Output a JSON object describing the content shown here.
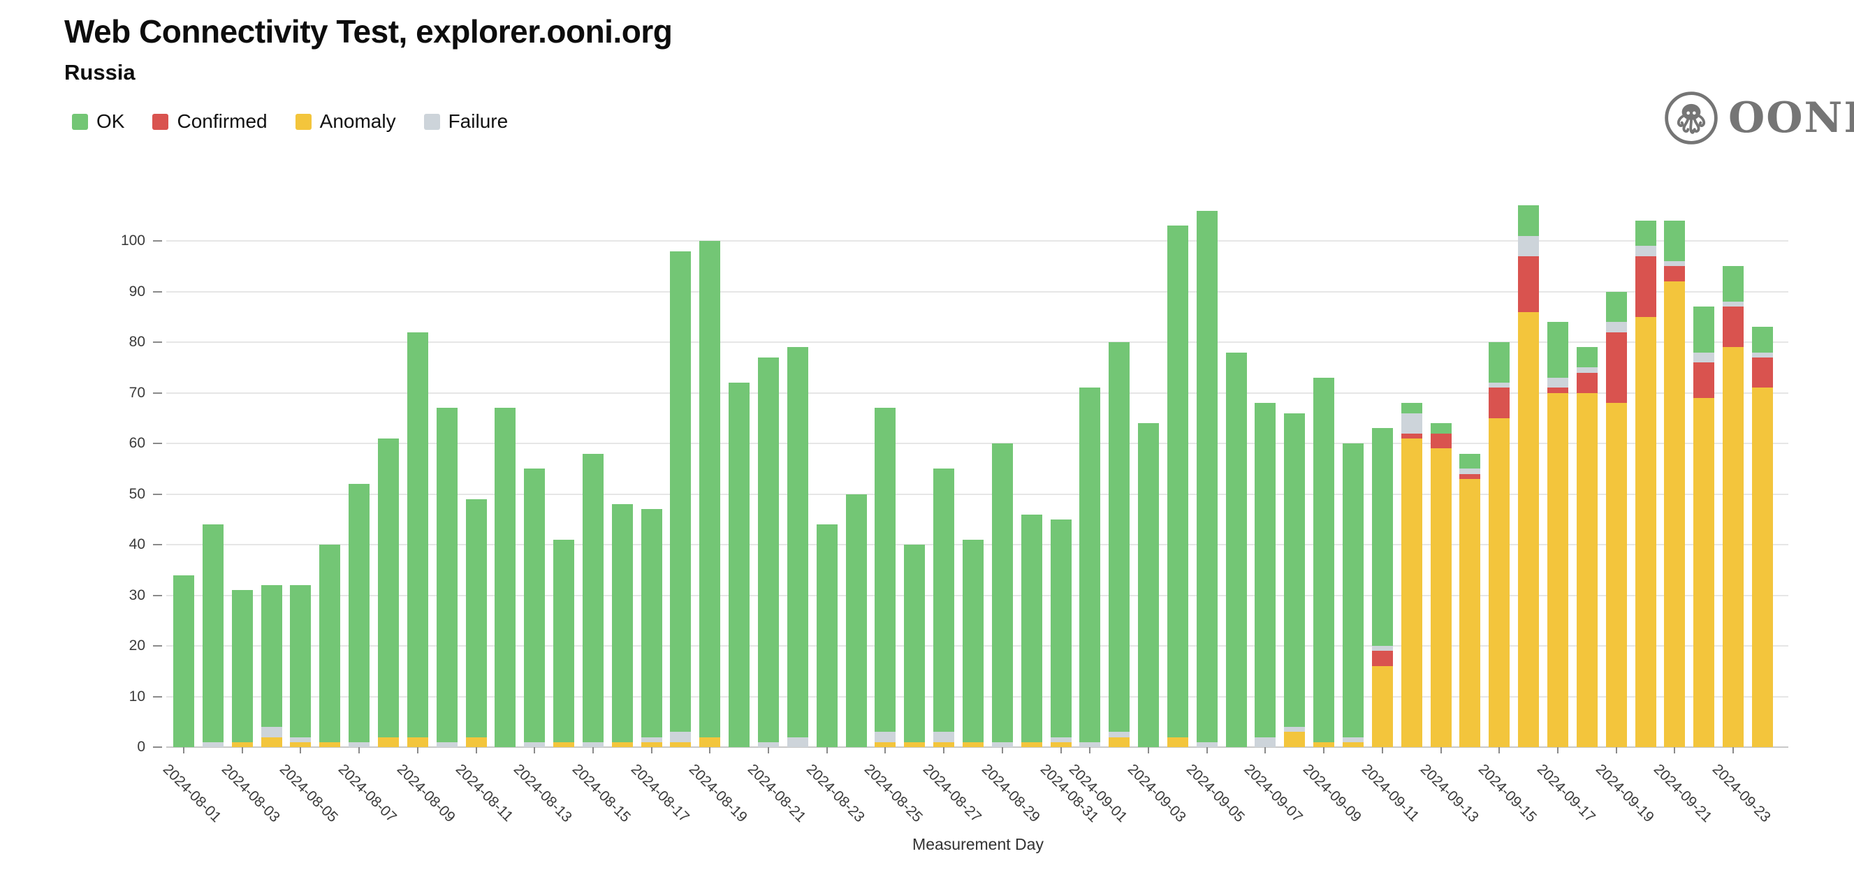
{
  "header": {
    "title": "Web Connectivity Test, explorer.ooni.org",
    "subtitle": "Russia"
  },
  "brand": {
    "name": "OONI",
    "logo_icon": "ooni-octopus-icon",
    "color": "#757575"
  },
  "legend": [
    {
      "key": "ok",
      "label": "OK",
      "color": "#73c675"
    },
    {
      "key": "confirmed",
      "label": "Confirmed",
      "color": "#d9534f"
    },
    {
      "key": "anomaly",
      "label": "Anomaly",
      "color": "#f3c53c"
    },
    {
      "key": "failure",
      "label": "Failure",
      "color": "#cdd4da"
    }
  ],
  "chart_data": {
    "type": "bar",
    "stacked": true,
    "title": "Web Connectivity Test, explorer.ooni.org",
    "subtitle": "Russia",
    "xlabel": "Measurement Day",
    "ylabel": "",
    "ylim": [
      0,
      100
    ],
    "y_ticks": [
      0,
      10,
      20,
      30,
      40,
      50,
      60,
      70,
      80,
      90,
      100
    ],
    "grid": "horizontal",
    "legend_position": "top-left",
    "stack_order": [
      "anomaly",
      "confirmed",
      "failure",
      "ok"
    ],
    "categories": [
      "2024-08-01",
      "2024-08-02",
      "2024-08-03",
      "2024-08-04",
      "2024-08-05",
      "2024-08-06",
      "2024-08-07",
      "2024-08-08",
      "2024-08-09",
      "2024-08-10",
      "2024-08-11",
      "2024-08-12",
      "2024-08-13",
      "2024-08-14",
      "2024-08-15",
      "2024-08-16",
      "2024-08-17",
      "2024-08-18",
      "2024-08-19",
      "2024-08-20",
      "2024-08-21",
      "2024-08-22",
      "2024-08-23",
      "2024-08-24",
      "2024-08-25",
      "2024-08-26",
      "2024-08-27",
      "2024-08-28",
      "2024-08-29",
      "2024-08-30",
      "2024-08-31",
      "2024-09-01",
      "2024-09-02",
      "2024-09-03",
      "2024-09-04",
      "2024-09-05",
      "2024-09-06",
      "2024-09-07",
      "2024-09-08",
      "2024-09-09",
      "2024-09-10",
      "2024-09-11",
      "2024-09-12",
      "2024-09-13",
      "2024-09-14",
      "2024-09-15",
      "2024-09-16",
      "2024-09-17",
      "2024-09-18",
      "2024-09-19",
      "2024-09-20",
      "2024-09-21",
      "2024-09-22",
      "2024-09-23",
      "2024-09-24"
    ],
    "x_tick_labels": [
      "2024-08-01",
      "2024-08-03",
      "2024-08-05",
      "2024-08-07",
      "2024-08-09",
      "2024-08-11",
      "2024-08-13",
      "2024-08-15",
      "2024-08-17",
      "2024-08-19",
      "2024-08-21",
      "2024-08-23",
      "2024-08-25",
      "2024-08-27",
      "2024-08-29",
      "2024-08-31",
      "2024-09-01",
      "2024-09-03",
      "2024-09-05",
      "2024-09-07",
      "2024-09-09",
      "2024-09-11",
      "2024-09-13",
      "2024-09-15",
      "2024-09-17",
      "2024-09-19",
      "2024-09-21",
      "2024-09-23"
    ],
    "series": [
      {
        "name": "OK",
        "key": "ok",
        "color": "#73c675",
        "values": [
          34,
          43,
          30,
          28,
          30,
          39,
          51,
          59,
          80,
          66,
          47,
          67,
          54,
          40,
          57,
          47,
          45,
          95,
          98,
          72,
          76,
          77,
          44,
          50,
          64,
          39,
          52,
          40,
          59,
          45,
          43,
          70,
          77,
          64,
          101,
          105,
          78,
          66,
          62,
          72,
          58,
          43,
          2,
          2,
          3,
          8,
          6,
          11,
          4,
          6,
          5,
          8,
          9,
          7,
          5
        ]
      },
      {
        "name": "Confirmed",
        "key": "confirmed",
        "color": "#d9534f",
        "values": [
          0,
          0,
          0,
          0,
          0,
          0,
          0,
          0,
          0,
          0,
          0,
          0,
          0,
          0,
          0,
          0,
          0,
          0,
          0,
          0,
          0,
          0,
          0,
          0,
          0,
          0,
          0,
          0,
          0,
          0,
          0,
          0,
          0,
          0,
          0,
          0,
          0,
          0,
          0,
          0,
          0,
          3,
          1,
          3,
          1,
          6,
          11,
          1,
          4,
          14,
          12,
          3,
          7,
          8,
          6
        ]
      },
      {
        "name": "Anomaly",
        "key": "anomaly",
        "color": "#f3c53c",
        "values": [
          0,
          0,
          1,
          2,
          1,
          1,
          0,
          2,
          2,
          0,
          2,
          0,
          0,
          1,
          0,
          1,
          1,
          1,
          2,
          0,
          0,
          0,
          0,
          0,
          1,
          1,
          1,
          1,
          0,
          1,
          1,
          0,
          2,
          0,
          2,
          0,
          0,
          0,
          3,
          1,
          1,
          16,
          61,
          59,
          53,
          65,
          86,
          70,
          70,
          68,
          85,
          92,
          69,
          79,
          71
        ]
      },
      {
        "name": "Failure",
        "key": "failure",
        "color": "#cdd4da",
        "values": [
          0,
          1,
          0,
          2,
          1,
          0,
          1,
          0,
          0,
          1,
          0,
          0,
          1,
          0,
          1,
          0,
          1,
          2,
          0,
          0,
          1,
          2,
          0,
          0,
          2,
          0,
          2,
          0,
          1,
          0,
          1,
          1,
          1,
          0,
          0,
          1,
          0,
          2,
          1,
          0,
          1,
          1,
          4,
          0,
          1,
          1,
          4,
          2,
          1,
          2,
          2,
          1,
          2,
          1,
          1
        ]
      }
    ]
  }
}
